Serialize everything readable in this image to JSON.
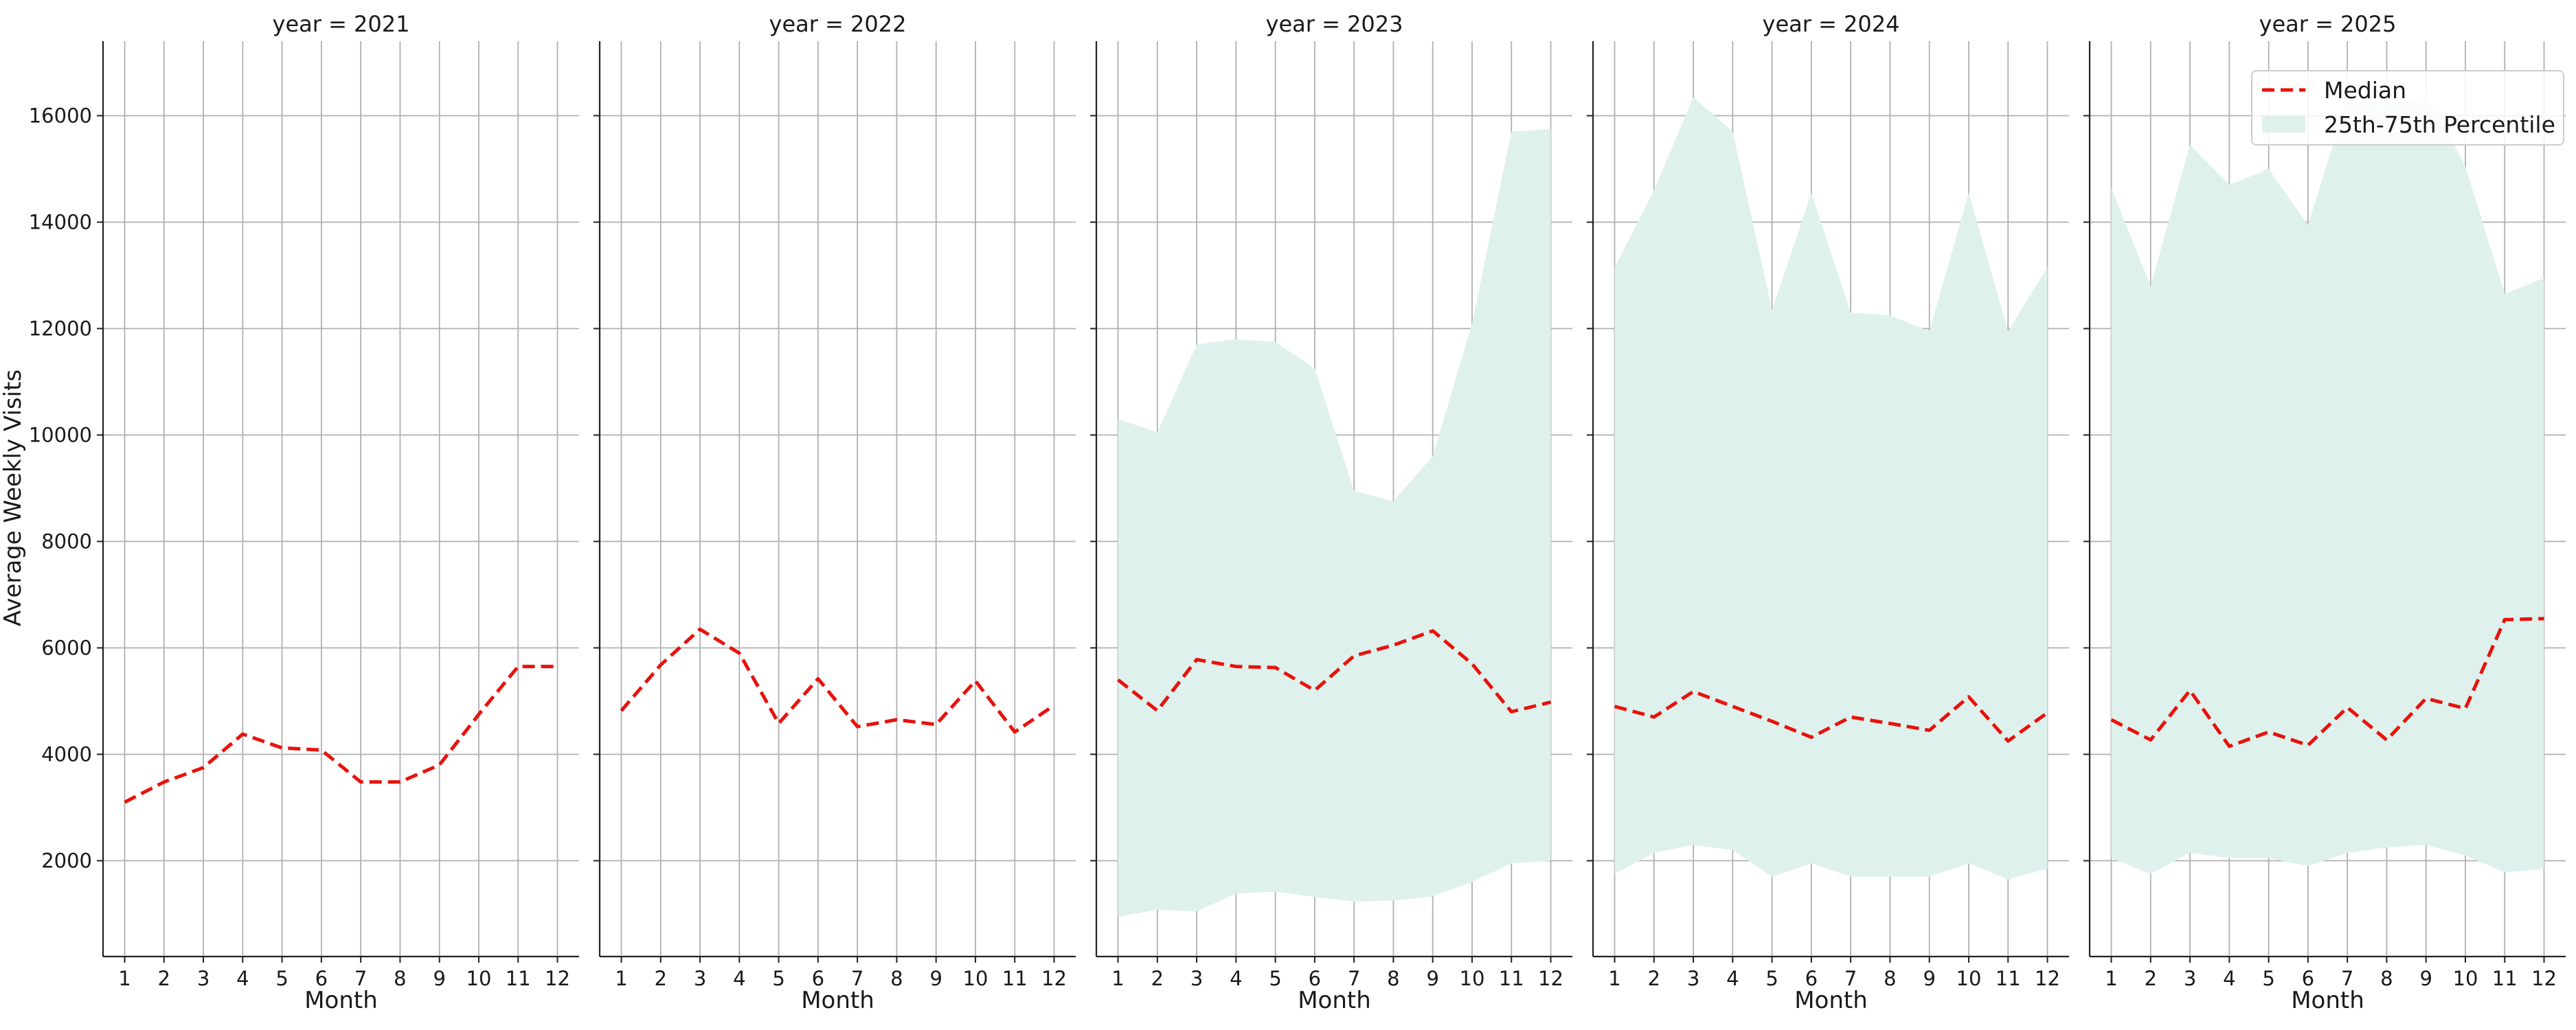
{
  "chart_data": {
    "type": "line",
    "ylabel": "Average Weekly Visits",
    "xlabel": "Month",
    "ylim": [
      200,
      17400
    ],
    "xlim": [
      0.45,
      12.55
    ],
    "x": [
      1,
      2,
      3,
      4,
      5,
      6,
      7,
      8,
      9,
      10,
      11,
      12
    ],
    "y_ticks": [
      2000,
      4000,
      6000,
      8000,
      10000,
      12000,
      14000,
      16000
    ],
    "grid": true,
    "legend": {
      "position": "top-right",
      "entries": [
        "Median",
        "25th-75th Percentile"
      ]
    },
    "colors": {
      "median": "#e8120c",
      "band": "#dff1ec"
    },
    "panels": [
      {
        "title": "year = 2021",
        "median": [
          3100,
          3480,
          3750,
          4380,
          4120,
          4080,
          3480,
          3480,
          3800,
          4750,
          5650,
          5650
        ],
        "p25": null,
        "p75": null
      },
      {
        "title": "year = 2022",
        "median": [
          4820,
          5680,
          6350,
          5900,
          4580,
          5420,
          4520,
          4650,
          4560,
          5380,
          4420,
          4920
        ],
        "p25": null,
        "p75": null
      },
      {
        "title": "year = 2023",
        "median": [
          5400,
          4820,
          5780,
          5650,
          5630,
          5200,
          5850,
          6050,
          6320,
          5700,
          4800,
          4980
        ],
        "p25": [
          950,
          1080,
          1050,
          1380,
          1420,
          1320,
          1230,
          1250,
          1330,
          1600,
          1950,
          2000
        ],
        "p75": [
          10300,
          10050,
          11700,
          11800,
          11750,
          11250,
          8950,
          8760,
          9600,
          12100,
          15700,
          15750
        ]
      },
      {
        "title": "year = 2024",
        "median": [
          4900,
          4700,
          5180,
          4900,
          4620,
          4320,
          4700,
          4580,
          4450,
          5080,
          4250,
          4780
        ],
        "p25": [
          1750,
          2150,
          2300,
          2200,
          1700,
          1950,
          1700,
          1700,
          1700,
          1950,
          1650,
          1850
        ],
        "p75": [
          13150,
          14600,
          16350,
          15700,
          12350,
          14550,
          12300,
          12250,
          11950,
          14550,
          11950,
          13150
        ]
      },
      {
        "title": "year = 2025",
        "median": [
          4650,
          4270,
          5200,
          4150,
          4420,
          4170,
          4880,
          4270,
          5050,
          4860,
          6530,
          6550
        ],
        "p25": [
          2050,
          1750,
          2150,
          2050,
          2050,
          1900,
          2150,
          2250,
          2300,
          2100,
          1780,
          1850
        ],
        "p75": [
          14650,
          12800,
          15450,
          14700,
          15000,
          13950,
          16300,
          16200,
          16400,
          15050,
          12650,
          12950
        ]
      }
    ]
  }
}
